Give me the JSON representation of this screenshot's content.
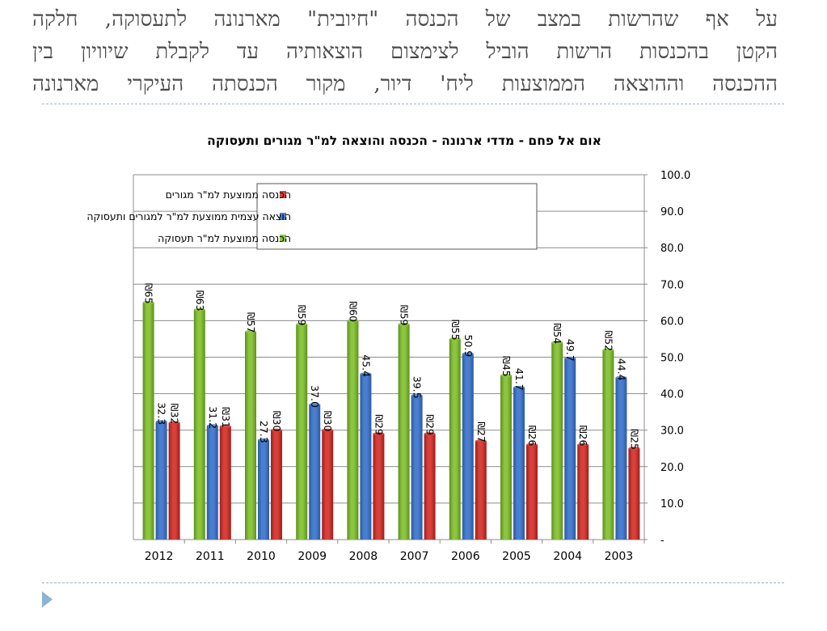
{
  "slide": {
    "title_lines": [
      "על אף שהרשות במצב של הכנסה \"חיובית\" מארנונה לתעסוקה, חלקה",
      "הקטן בהכנסות הרשות הוביל לצימצום הוצאותיה עד לקבלת שיוויון בין",
      "ההכנסה וההוצאה הממוצעות ליח' דיור, מקור הכנסתה העיקרי מארנונה"
    ]
  },
  "colors": {
    "green": "#8cc63f",
    "green_dark": "#5f8f1f",
    "blue": "#4a7fd0",
    "blue_dark": "#2b5aa3",
    "red": "#d9403a",
    "red_dark": "#9c1f1c"
  },
  "chart_data": {
    "type": "bar",
    "title": "אום אל פחם - מדדי ארנונה - הכנסה והוצאה למ\"ר מגורים ותעסוקה",
    "categories": [
      "2012",
      "2011",
      "2010",
      "2009",
      "2008",
      "2007",
      "2006",
      "2005",
      "2004",
      "2003"
    ],
    "series": [
      {
        "name": "הכנסה ממוצעת למ\"ר תעסוקה",
        "values": [
          65,
          63,
          57,
          59,
          60,
          59,
          55,
          45,
          54,
          52
        ],
        "labels": [
          "₪65",
          "₪63",
          "₪57",
          "₪59",
          "₪60",
          "₪59",
          "₪55",
          "₪45",
          "₪54",
          "₪52"
        ],
        "color": "#8cc63f"
      },
      {
        "name": "הוצאה עצמית ממוצעת למ\"ר למגורים ותעסוקה",
        "values": [
          32.3,
          31.2,
          27.3,
          37.0,
          45.4,
          39.5,
          50.9,
          41.7,
          49.7,
          44.4
        ],
        "labels": [
          "32.3",
          "31.2",
          "27.3",
          "37.0",
          "45.4",
          "39.5",
          "50.9",
          "41.7",
          "49.7",
          "44.4"
        ],
        "color": "#4a7fd0"
      },
      {
        "name": "הכנסה ממוצעת למ\"ר מגורים",
        "values": [
          32,
          31,
          30,
          30,
          29,
          29,
          27,
          26,
          26,
          25
        ],
        "labels": [
          "₪32",
          "₪31",
          "₪30",
          "₪30",
          "₪29",
          "₪29",
          "₪27",
          "₪26",
          "₪26",
          "₪25"
        ],
        "color": "#d9403a"
      }
    ],
    "legend_order": [
      2,
      1,
      0
    ],
    "ylim": [
      0,
      100
    ],
    "yticks": [
      "-",
      "10.0",
      "20.0",
      "30.0",
      "40.0",
      "50.0",
      "60.0",
      "70.0",
      "80.0",
      "90.0",
      "100.0"
    ],
    "y_axis_side": "right",
    "grid": true,
    "legend_position": "top-left"
  }
}
